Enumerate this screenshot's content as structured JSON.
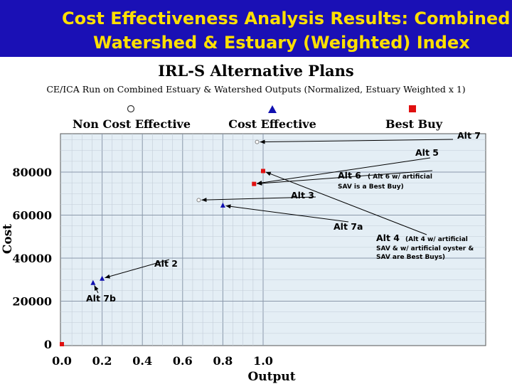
{
  "banner": {
    "line1": "Cost Effectiveness Analysis Results: Combined",
    "line2": "Watershed & Estuary (Weighted) Index"
  },
  "chart_data": {
    "type": "scatter",
    "title": "IRL-S Alternative Plans",
    "subtitle": "CE/ICA Run on Combined Estuary & Watershed Outputs (Normalized, Estuary Weighted x 1)",
    "xlabel": "Output",
    "ylabel": "Cost",
    "xlim": [
      0,
      1.05
    ],
    "ylim": [
      0,
      95000
    ],
    "x_ticks": [
      "0.0",
      "0.2",
      "0.4",
      "0.6",
      "0.8",
      "1.0"
    ],
    "y_ticks": [
      "0",
      "20000",
      "40000",
      "60000",
      "80000"
    ],
    "grid": true,
    "legend_position": "top",
    "legend": [
      {
        "label": "Non Cost Effective",
        "marker": "open-circle"
      },
      {
        "label": "Cost Effective",
        "marker": "triangle"
      },
      {
        "label": "Best Buy",
        "marker": "square"
      }
    ],
    "colors": {
      "cost_effective": "#1010b0",
      "best_buy": "#e01010",
      "non_cost_effective": "#808080",
      "plot_bg": "#e4eef5",
      "grid": "#9aaabb"
    },
    "series": [
      {
        "name": "Non Cost Effective",
        "marker": "circle",
        "points": [
          {
            "x": 0.68,
            "y": 67000
          },
          {
            "x": 0.97,
            "y": 94000
          }
        ]
      },
      {
        "name": "Cost Effective",
        "marker": "triangle",
        "points": [
          {
            "x": 0.155,
            "y": 28500
          },
          {
            "x": 0.2,
            "y": 30500
          },
          {
            "x": 0.8,
            "y": 64500
          }
        ]
      },
      {
        "name": "Best Buy",
        "marker": "square",
        "points": [
          {
            "x": 0.0,
            "y": 0
          },
          {
            "x": 0.955,
            "y": 74500
          },
          {
            "x": 1.0,
            "y": 80500
          }
        ]
      }
    ],
    "annotations": [
      {
        "label": "Alt 7",
        "note": "",
        "x": 0.97,
        "y": 94000
      },
      {
        "label": "Alt 5",
        "note": "",
        "x": 0.955,
        "y": 74500
      },
      {
        "label": "Alt 6",
        "note": "( Alt 6 w/ artificial SAV is a Best Buy)",
        "x": 0.955,
        "y": 74500
      },
      {
        "label": "Alt 3",
        "note": "",
        "x": 0.68,
        "y": 67000
      },
      {
        "label": "Alt 7a",
        "note": "",
        "x": 0.8,
        "y": 64500
      },
      {
        "label": "Alt 4",
        "note": "(Alt 4 w/ artificial SAV & w/ artificial oyster & SAV are Best Buys)",
        "x": 1.0,
        "y": 80500
      },
      {
        "label": "Alt 2",
        "note": "",
        "x": 0.2,
        "y": 30500
      },
      {
        "label": "Alt 7b",
        "note": "",
        "x": 0.155,
        "y": 28500
      }
    ]
  }
}
